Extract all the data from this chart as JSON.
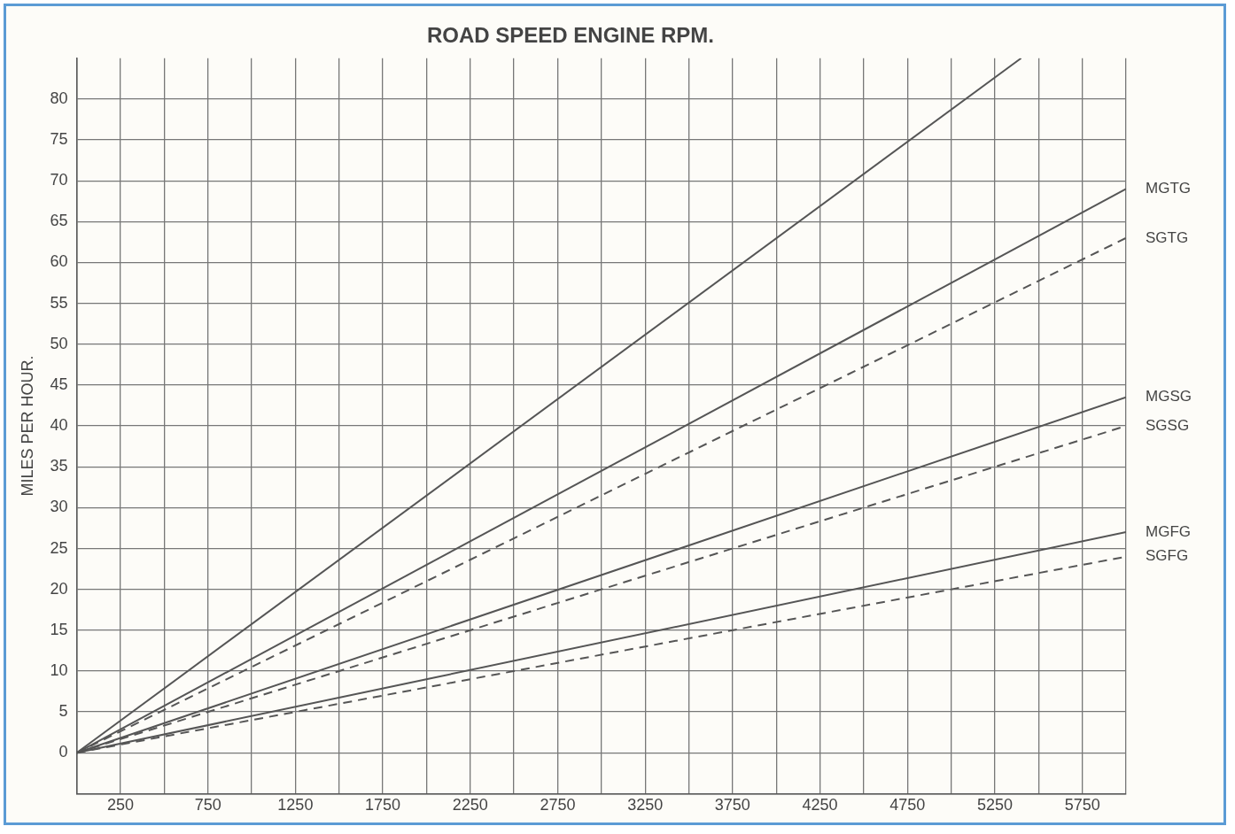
{
  "chart_data": {
    "type": "line",
    "title": "ROAD SPEED ENGINE RPM.",
    "ylabel": "MILES PER HOUR.",
    "xlim": [
      0,
      6000
    ],
    "ylim": [
      -5,
      85
    ],
    "xticks": [
      {
        "value": 0,
        "label": null
      },
      250,
      {
        "value": 500,
        "label": null
      },
      750,
      {
        "value": 1000,
        "label": null
      },
      1250,
      {
        "value": 1500,
        "label": null
      },
      1750,
      {
        "value": 2000,
        "label": null
      },
      2250,
      {
        "value": 2500,
        "label": null
      },
      2750,
      {
        "value": 3000,
        "label": null
      },
      3250,
      {
        "value": 3500,
        "label": null
      },
      3750,
      {
        "value": 4000,
        "label": null
      },
      4250,
      {
        "value": 4500,
        "label": null
      },
      4750,
      {
        "value": 5000,
        "label": null
      },
      5250,
      {
        "value": 5500,
        "label": null
      },
      5750,
      {
        "value": 6000,
        "label": null
      }
    ],
    "yticks": [
      {
        "value": -5,
        "label": null
      },
      0,
      5,
      10,
      15,
      20,
      25,
      30,
      35,
      40,
      45,
      50,
      55,
      60,
      65,
      70,
      75,
      80
    ],
    "grid": true,
    "legend": false,
    "marker": "none",
    "series": [
      {
        "color": "#555555",
        "x": [
          0,
          5400
        ],
        "values": [
          0,
          85
        ],
        "line_style": "solid"
      },
      {
        "name": "MGTG",
        "color": "#555555",
        "x": [
          0,
          6000
        ],
        "values": [
          0,
          69
        ],
        "line_style": "solid"
      },
      {
        "name": "SGTG",
        "color": "#555555",
        "x": [
          0,
          6000
        ],
        "values": [
          0,
          63
        ],
        "line_style": "dashed"
      },
      {
        "name": "MGSG",
        "color": "#555555",
        "x": [
          0,
          6000
        ],
        "values": [
          0,
          43.5
        ],
        "line_style": "solid"
      },
      {
        "name": "SGSG",
        "color": "#555555",
        "x": [
          0,
          6000
        ],
        "values": [
          0,
          40
        ],
        "line_style": "dashed"
      },
      {
        "name": "MGFG",
        "color": "#555555",
        "x": [
          0,
          6000
        ],
        "values": [
          0,
          27
        ],
        "line_style": "solid"
      },
      {
        "name": "SGFG",
        "color": "#555555",
        "x": [
          0,
          6000
        ],
        "values": [
          0,
          24
        ],
        "line_style": "dashed"
      }
    ]
  }
}
